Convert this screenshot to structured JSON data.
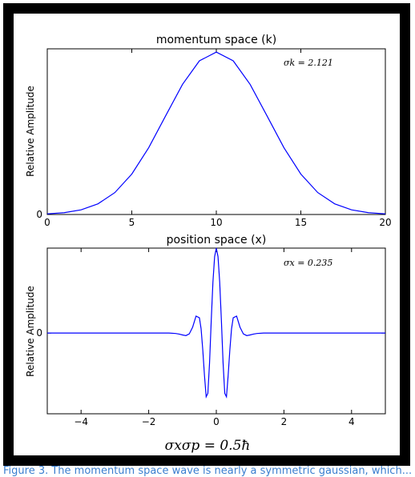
{
  "chart_data": [
    {
      "type": "line",
      "title": "momentum space (k)",
      "xlabel": "",
      "ylabel": "Relative Amplitude",
      "xlim": [
        0,
        20
      ],
      "ylim": [
        0,
        1.02
      ],
      "x_ticks": [
        "0",
        "5",
        "10",
        "15",
        "20"
      ],
      "y_ticks": [
        "0"
      ],
      "annotation": "σk = 2.121",
      "series": [
        {
          "color": "#0000ff",
          "x": [
            0,
            1,
            2,
            3,
            4,
            5,
            6,
            7,
            8,
            9,
            10,
            11,
            12,
            13,
            14,
            15,
            16,
            17,
            18,
            19,
            20
          ],
          "values": [
            0.0039,
            0.0111,
            0.0286,
            0.0657,
            0.135,
            0.249,
            0.411,
            0.607,
            0.801,
            0.946,
            1.0,
            0.946,
            0.801,
            0.607,
            0.411,
            0.249,
            0.135,
            0.0657,
            0.0286,
            0.0111,
            0.0039
          ]
        }
      ]
    },
    {
      "type": "line",
      "title": "position space (x)",
      "xlabel": "",
      "ylabel": "Relative Amplitude",
      "xlim": [
        -5,
        5
      ],
      "ylim": [
        -0.95,
        1.0
      ],
      "x_ticks": [
        "−4",
        "−2",
        "0",
        "2",
        "4"
      ],
      "y_ticks": [
        "0"
      ],
      "annotation": "σx = 0.235",
      "series": [
        {
          "color": "#0000ff",
          "x": [
            -5.0,
            -1.4,
            -1.2,
            -1.1,
            -1.0,
            -0.9,
            -0.8,
            -0.7,
            -0.6,
            -0.5,
            -0.45,
            -0.4,
            -0.35,
            -0.3,
            -0.25,
            -0.2,
            -0.15,
            -0.1,
            -0.05,
            0.0,
            0.05,
            0.1,
            0.15,
            0.2,
            0.25,
            0.3,
            0.35,
            0.4,
            0.45,
            0.5,
            0.6,
            0.7,
            0.8,
            0.9,
            1.0,
            1.1,
            1.2,
            1.4,
            5.0
          ],
          "values": [
            0.0,
            0.0,
            -0.005,
            -0.012,
            -0.022,
            -0.03,
            -0.01,
            0.07,
            0.2,
            0.18,
            0.05,
            -0.2,
            -0.5,
            -0.75,
            -0.71,
            -0.35,
            0.15,
            0.6,
            0.9,
            1.0,
            0.9,
            0.6,
            0.15,
            -0.35,
            -0.71,
            -0.75,
            -0.5,
            -0.2,
            0.05,
            0.18,
            0.2,
            0.07,
            -0.01,
            -0.03,
            -0.022,
            -0.012,
            -0.005,
            0.0,
            0.0
          ]
        }
      ]
    }
  ],
  "equation": "σxσp = 0.5ħ",
  "caption": "Figure 3. The momentum space wave is nearly a symmetric gaussian, which..."
}
